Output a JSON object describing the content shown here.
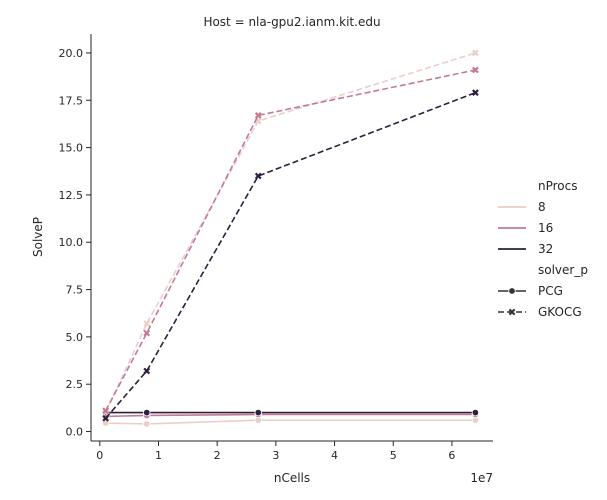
{
  "chart_data": {
    "type": "line",
    "title": "Host = nla-gpu2.ianm.kit.edu",
    "xlabel": "nCells",
    "ylabel": "SolveP",
    "x_offset_label": "1e7",
    "x": [
      1,
      8,
      27,
      64
    ],
    "x_unit_scale": 1000000.0,
    "xlim": [
      -1.5,
      67
    ],
    "ylim": [
      -0.5,
      21
    ],
    "xticks": [
      0,
      1,
      2,
      3,
      4,
      5,
      6
    ],
    "xtick_labels": [
      "0",
      "1",
      "2",
      "3",
      "4",
      "5",
      "6"
    ],
    "yticks": [
      0.0,
      2.5,
      5.0,
      7.5,
      10.0,
      12.5,
      15.0,
      17.5,
      20.0
    ],
    "ytick_labels": [
      "0.0",
      "2.5",
      "5.0",
      "7.5",
      "10.0",
      "12.5",
      "15.0",
      "17.5",
      "20.0"
    ],
    "grid": false,
    "legend_placement": "center-right",
    "legend": {
      "hue_title": "nProcs",
      "hue_entries": [
        {
          "label": "8",
          "color": "#e9cfc8"
        },
        {
          "label": "16",
          "color": "#c27a95"
        },
        {
          "label": "32",
          "color": "#2d1e3e"
        }
      ],
      "style_title": "solver_p",
      "style_entries": [
        {
          "label": "PCG",
          "marker": "circle",
          "dash": "solid"
        },
        {
          "label": "GKOCG",
          "marker": "x",
          "dash": "dashed"
        }
      ]
    },
    "series": [
      {
        "nProcs": "8",
        "solver_p": "PCG",
        "color": "#e9cfc8",
        "marker": "circle",
        "dash": "solid",
        "values": [
          0.45,
          0.4,
          0.6,
          0.6
        ]
      },
      {
        "nProcs": "16",
        "solver_p": "PCG",
        "color": "#c27a95",
        "marker": "circle",
        "dash": "solid",
        "values": [
          0.8,
          0.85,
          0.9,
          0.9
        ]
      },
      {
        "nProcs": "32",
        "solver_p": "PCG",
        "color": "#2d1e3e",
        "marker": "circle",
        "dash": "solid",
        "values": [
          1.0,
          1.0,
          1.0,
          1.0
        ]
      },
      {
        "nProcs": "8",
        "solver_p": "GKOCG",
        "color": "#e9cfc8",
        "marker": "x",
        "dash": "dashed",
        "values": [
          1.0,
          5.7,
          16.4,
          20.0
        ]
      },
      {
        "nProcs": "16",
        "solver_p": "GKOCG",
        "color": "#c27a95",
        "marker": "x",
        "dash": "dashed",
        "values": [
          1.1,
          5.2,
          16.7,
          19.1
        ]
      },
      {
        "nProcs": "32",
        "solver_p": "GKOCG",
        "color": "#2d1e3e",
        "marker": "x",
        "dash": "dashed",
        "values": [
          0.7,
          3.2,
          13.5,
          17.9
        ]
      }
    ]
  }
}
